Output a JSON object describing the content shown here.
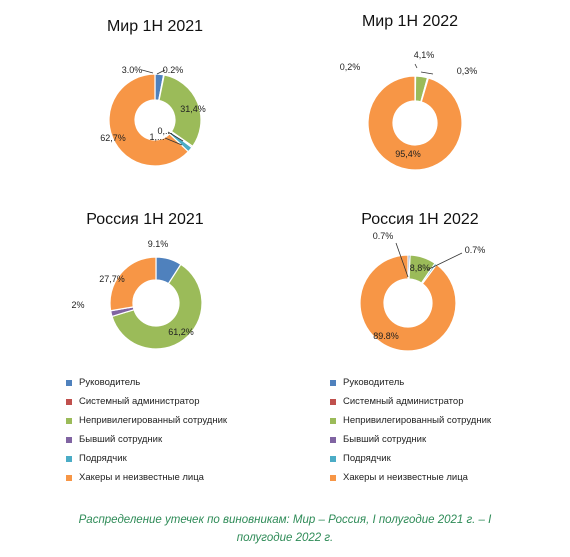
{
  "colors": {
    "manager": "#4F81BD",
    "sysadmin": "#C0504D",
    "employee": "#9BBB59",
    "former": "#8064A2",
    "contractor": "#4BACC6",
    "hackers": "#F79646"
  },
  "legend": [
    {
      "key": "manager",
      "label": "Руководитель"
    },
    {
      "key": "sysadmin",
      "label": "Системный администратор"
    },
    {
      "key": "employee",
      "label": "Непривилегированный сотрудник"
    },
    {
      "key": "former",
      "label": "Бывший сотрудник"
    },
    {
      "key": "contractor",
      "label": "Подрядчик"
    },
    {
      "key": "hackers",
      "label": "Хакеры и неизвестные лица"
    }
  ],
  "caption": {
    "line1": "Распределение утечек по виновникам: Мир – Россия, I полугодие 2021 г. – I",
    "line2": "полугодие 2022 г."
  },
  "chart_data": [
    {
      "type": "pie",
      "title": "Мир 1H 2021",
      "slices": [
        {
          "key": "manager",
          "value": 3.0,
          "label": "3.0%"
        },
        {
          "key": "sysadmin",
          "value": 0.2,
          "label": "0.2%"
        },
        {
          "key": "employee",
          "value": 31.4,
          "label": "31,4%"
        },
        {
          "key": "former",
          "value": 0.5,
          "label": "0,..."
        },
        {
          "key": "contractor",
          "value": 1.9,
          "label": "1,..."
        },
        {
          "key": "hackers",
          "value": 62.7,
          "label": "62,7%"
        }
      ]
    },
    {
      "type": "pie",
      "title": "Мир 1Н 2022",
      "slices": [
        {
          "key": "manager",
          "value": 0.2,
          "label": "0,2%"
        },
        {
          "key": "employee",
          "value": 4.1,
          "label": "4,1%"
        },
        {
          "key": "contractor",
          "value": 0.3,
          "label": "0,3%"
        },
        {
          "key": "hackers",
          "value": 95.4,
          "label": "95,4%"
        }
      ]
    },
    {
      "type": "pie",
      "title": "Россия 1H 2021",
      "slices": [
        {
          "key": "manager",
          "value": 9.1,
          "label": "9.1%"
        },
        {
          "key": "employee",
          "value": 61.2,
          "label": "61,2%"
        },
        {
          "key": "former",
          "value": 2.0,
          "label": "2%"
        },
        {
          "key": "hackers",
          "value": 27.7,
          "label": "27,7%"
        }
      ]
    },
    {
      "type": "pie",
      "title": "Россия 1Н 2022",
      "slices": [
        {
          "key": "manager",
          "value": 0.7,
          "label": "0.7%"
        },
        {
          "key": "employee",
          "value": 8.8,
          "label": "8,8%"
        },
        {
          "key": "contractor",
          "value": 0.7,
          "label": "0.7%"
        },
        {
          "key": "hackers",
          "value": 89.8,
          "label": "89.8%"
        }
      ]
    }
  ]
}
